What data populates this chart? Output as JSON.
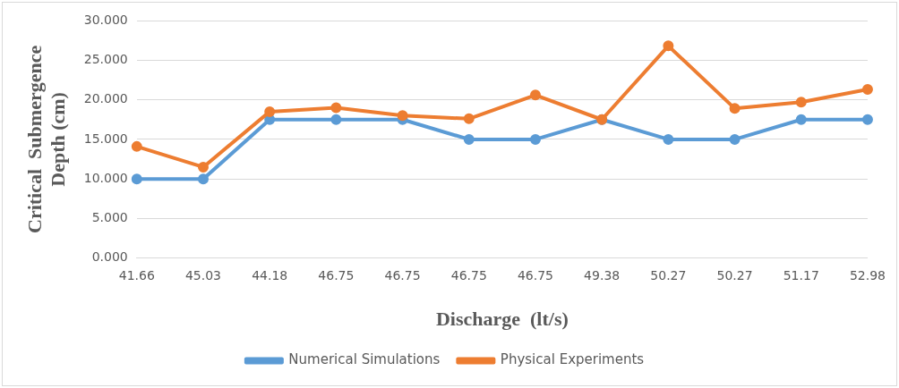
{
  "chart_data": {
    "type": "line",
    "xlabel": "Discharge  (lt/s)",
    "ylabel": "Critical  Submergence\nDepth (cm)",
    "categories": [
      "41.66",
      "45.03",
      "44.18",
      "46.75",
      "46.75",
      "46.75",
      "46.75",
      "49.38",
      "50.27",
      "50.27",
      "51.17",
      "52.98"
    ],
    "series": [
      {
        "name": "Numerical Simulations",
        "color": "#5b9bd5",
        "values": [
          10,
          10,
          17.5,
          17.5,
          17.5,
          15,
          15,
          17.5,
          15,
          15,
          17.5,
          17.5
        ]
      },
      {
        "name": "Physical Experiments",
        "color": "#ed7d31",
        "values": [
          14.1,
          11.5,
          18.5,
          19.0,
          18.0,
          17.6,
          20.6,
          17.5,
          26.8,
          18.9,
          19.7,
          21.3
        ]
      }
    ],
    "ylim": [
      0,
      30
    ],
    "yticks": [
      {
        "value": 0,
        "label": "0.000"
      },
      {
        "value": 5,
        "label": "5.000"
      },
      {
        "value": 10,
        "label": "10.000"
      },
      {
        "value": 15,
        "label": "15.000"
      },
      {
        "value": 20,
        "label": "20.000"
      },
      {
        "value": 25,
        "label": "25.000"
      },
      {
        "value": 30,
        "label": "30.000"
      }
    ],
    "grid": "y",
    "legend": "bottom",
    "marker": "circle",
    "line_style": "solid"
  }
}
